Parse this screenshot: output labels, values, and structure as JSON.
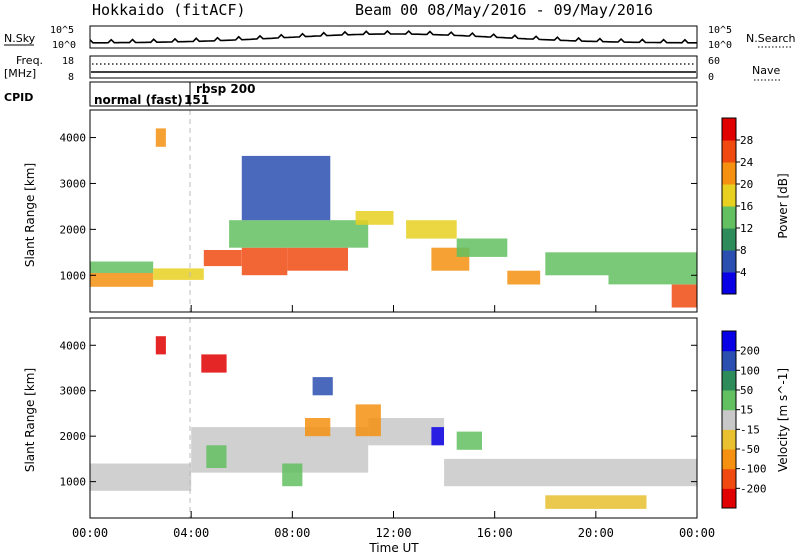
{
  "chart_data": {
    "type": "heatmap",
    "header": {
      "title_left": "Hokkaido (fitACF)",
      "title_right": "Beam 00  08/May/2016 - 09/May/2016"
    },
    "top_panels": {
      "nsky_label": "N.Sky",
      "nsky_ticks": [
        "10^5",
        "10^0"
      ],
      "nsearch_label": "N.Search",
      "nsearch_ticks": [
        "10^5",
        "10^0"
      ],
      "freq_label_1": "Freq.",
      "freq_label_2": "[MHz]",
      "freq_ticks": [
        "18",
        "8"
      ],
      "nave_label": "Nave",
      "nave_ticks": [
        "60",
        "0"
      ],
      "cpid_label": "CPID",
      "cpid_segments": [
        {
          "label": "normal (fast)",
          "start_hour": 0
        },
        {
          "label": "151",
          "start_hour": 3.75
        },
        {
          "label": "rbsp 200",
          "start_hour": 4.0
        }
      ]
    },
    "x_axis": {
      "label": "Time UT",
      "range_hours": [
        0,
        24
      ],
      "ticks": [
        {
          "hour": 0,
          "label": "00:00"
        },
        {
          "hour": 4,
          "label": "04:00"
        },
        {
          "hour": 8,
          "label": "08:00"
        },
        {
          "hour": 12,
          "label": "12:00"
        },
        {
          "hour": 16,
          "label": "16:00"
        },
        {
          "hour": 20,
          "label": "20:00"
        },
        {
          "hour": 24,
          "label": "00:00"
        }
      ]
    },
    "power_panel": {
      "ylabel": "Slant Range [km]",
      "ylim": [
        200,
        4600
      ],
      "yticks": [
        "1000",
        "2000",
        "3000",
        "4000"
      ],
      "colorbar_label": "Power [dB]",
      "colorbar_ticks": [
        "28",
        "24",
        "20",
        "16",
        "12",
        "8",
        "4"
      ],
      "colors": [
        "#0a00e6",
        "#2a4fb0",
        "#2e8c5a",
        "#62c060",
        "#e8d020",
        "#f59010",
        "#f04a10",
        "#e00000"
      ],
      "regions": [
        {
          "t0": 0.0,
          "t1": 2.5,
          "r0": 750,
          "r1": 1050,
          "level": 5
        },
        {
          "t0": 0.0,
          "t1": 2.5,
          "r0": 1050,
          "r1": 1300,
          "level": 3
        },
        {
          "t0": 2.5,
          "t1": 4.5,
          "r0": 900,
          "r1": 1150,
          "level": 4
        },
        {
          "t0": 4.5,
          "t1": 6.0,
          "r0": 1200,
          "r1": 1550,
          "level": 6
        },
        {
          "t0": 6.0,
          "t1": 7.8,
          "r0": 1000,
          "r1": 1600,
          "level": 6
        },
        {
          "t0": 7.8,
          "t1": 10.2,
          "r0": 1100,
          "r1": 1600,
          "level": 6
        },
        {
          "t0": 5.5,
          "t1": 11.0,
          "r0": 1600,
          "r1": 2200,
          "level": 3
        },
        {
          "t0": 6.0,
          "t1": 9.5,
          "r0": 2200,
          "r1": 3600,
          "level": 1
        },
        {
          "t0": 10.5,
          "t1": 12.0,
          "r0": 2100,
          "r1": 2400,
          "level": 4
        },
        {
          "t0": 12.5,
          "t1": 14.5,
          "r0": 1800,
          "r1": 2200,
          "level": 4
        },
        {
          "t0": 13.5,
          "t1": 15.0,
          "r0": 1100,
          "r1": 1600,
          "level": 5
        },
        {
          "t0": 14.5,
          "t1": 16.5,
          "r0": 1400,
          "r1": 1800,
          "level": 3
        },
        {
          "t0": 16.5,
          "t1": 17.8,
          "r0": 800,
          "r1": 1100,
          "level": 5
        },
        {
          "t0": 18.0,
          "t1": 20.5,
          "r0": 1000,
          "r1": 1500,
          "level": 3
        },
        {
          "t0": 20.5,
          "t1": 24.0,
          "r0": 800,
          "r1": 1500,
          "level": 3
        },
        {
          "t0": 23.0,
          "t1": 24.0,
          "r0": 300,
          "r1": 800,
          "level": 6
        },
        {
          "t0": 2.6,
          "t1": 3.0,
          "r0": 3800,
          "r1": 4200,
          "level": 5
        }
      ]
    },
    "velocity_panel": {
      "ylabel": "Slant Range [km]",
      "ylim": [
        200,
        4600
      ],
      "yticks": [
        "1000",
        "2000",
        "3000",
        "4000"
      ],
      "colorbar_label": "Velocity [m s^-1]",
      "colorbar_ticks": [
        "200",
        "100",
        "50",
        "15",
        "-15",
        "-50",
        "-100",
        "-200"
      ],
      "colors": [
        "#e00000",
        "#f04a10",
        "#f59010",
        "#e8c030",
        "#c8c8c8",
        "#62c060",
        "#2e8c5a",
        "#2a4fb0",
        "#0a00e6"
      ],
      "regions": [
        {
          "t0": 0.0,
          "t1": 4.0,
          "r0": 800,
          "r1": 1400,
          "level": 4
        },
        {
          "t0": 4.0,
          "t1": 11.0,
          "r0": 1200,
          "r1": 2200,
          "level": 4
        },
        {
          "t0": 11.0,
          "t1": 14.0,
          "r0": 1800,
          "r1": 2400,
          "level": 4
        },
        {
          "t0": 14.0,
          "t1": 24.0,
          "r0": 900,
          "r1": 1500,
          "level": 4
        },
        {
          "t0": 4.6,
          "t1": 5.4,
          "r0": 1300,
          "r1": 1800,
          "level": 5
        },
        {
          "t0": 7.6,
          "t1": 8.4,
          "r0": 900,
          "r1": 1400,
          "level": 5
        },
        {
          "t0": 8.5,
          "t1": 9.5,
          "r0": 2000,
          "r1": 2400,
          "level": 2
        },
        {
          "t0": 10.5,
          "t1": 11.5,
          "r0": 2000,
          "r1": 2700,
          "level": 2
        },
        {
          "t0": 13.5,
          "t1": 14.0,
          "r0": 1800,
          "r1": 2200,
          "level": 8
        },
        {
          "t0": 14.5,
          "t1": 15.5,
          "r0": 1700,
          "r1": 2100,
          "level": 5
        },
        {
          "t0": 4.4,
          "t1": 5.4,
          "r0": 3400,
          "r1": 3800,
          "level": 0
        },
        {
          "t0": 2.6,
          "t1": 3.0,
          "r0": 3800,
          "r1": 4200,
          "level": 0
        },
        {
          "t0": 18.0,
          "t1": 22.0,
          "r0": 400,
          "r1": 700,
          "level": 3
        },
        {
          "t0": 8.8,
          "t1": 9.6,
          "r0": 2900,
          "r1": 3300,
          "level": 7
        }
      ]
    }
  }
}
